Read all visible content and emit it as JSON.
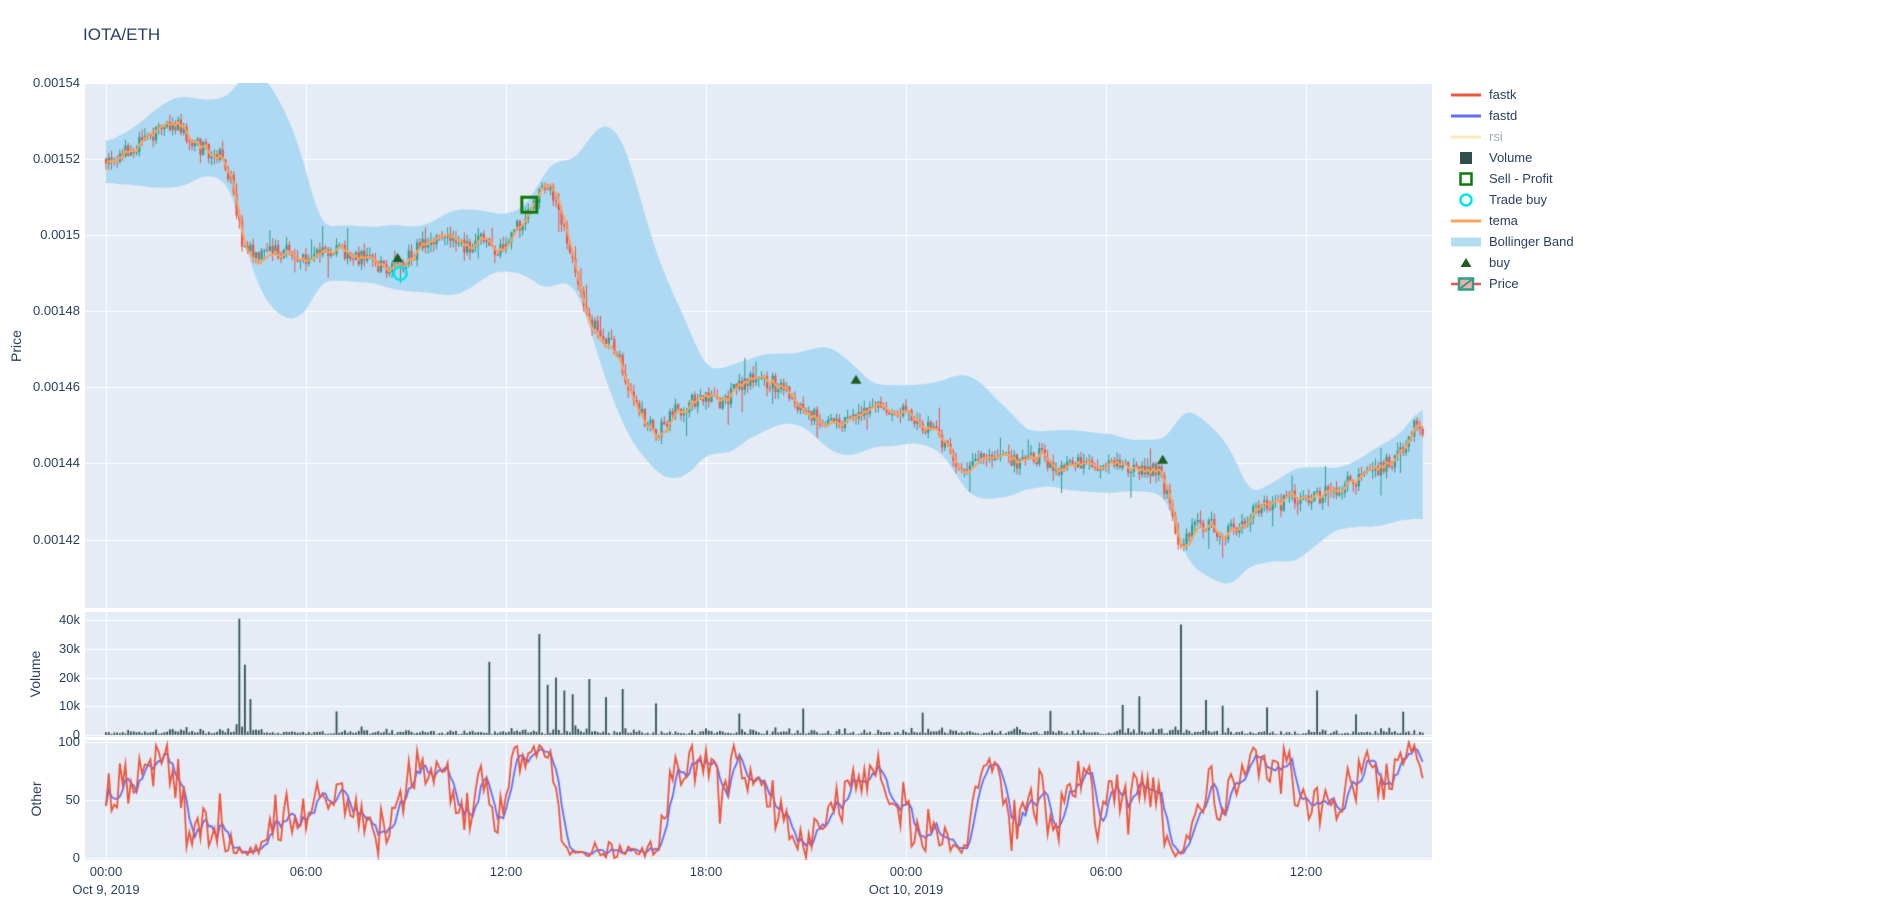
{
  "title": "IOTA/ETH",
  "legend": {
    "items": [
      {
        "id": "fastk",
        "label": "fastk",
        "symbol": "line",
        "color": "#EF553B",
        "dim": false
      },
      {
        "id": "fastd",
        "label": "fastd",
        "symbol": "line",
        "color": "#636EFA",
        "dim": false
      },
      {
        "id": "rsi",
        "label": "rsi",
        "symbol": "line",
        "color": "#FECB52",
        "dim": true
      },
      {
        "id": "volume",
        "label": "Volume",
        "symbol": "square-fill",
        "color": "#2F4F4F",
        "dim": false
      },
      {
        "id": "sell-profit",
        "label": "Sell - Profit",
        "symbol": "square-open",
        "color": "#0B7A0B",
        "dim": false
      },
      {
        "id": "trade-buy",
        "label": "Trade buy",
        "symbol": "circle-open",
        "color": "#00E5EE",
        "dim": false
      },
      {
        "id": "tema",
        "label": "tema",
        "symbol": "line",
        "color": "#FFA15A",
        "dim": false
      },
      {
        "id": "bollinger",
        "label": "Bollinger Band",
        "symbol": "band",
        "color": "#B5DDF2",
        "dim": false
      },
      {
        "id": "buy",
        "label": "buy",
        "symbol": "triangle",
        "color": "#1F5E20",
        "dim": false
      },
      {
        "id": "price",
        "label": "Price",
        "symbol": "candle",
        "color": "#2F9E8B",
        "dim": false
      }
    ]
  },
  "axes": {
    "price": {
      "title": "Price",
      "ticks": [
        "0.00154",
        "0.00152",
        "0.0015",
        "0.00148",
        "0.00146",
        "0.00144",
        "0.00142"
      ],
      "tick_values": [
        0.00154,
        0.00152,
        0.0015,
        0.00148,
        0.00146,
        0.00144,
        0.00142
      ]
    },
    "volume": {
      "title": "Volume",
      "ticks": [
        "40k",
        "30k",
        "20k",
        "10k",
        "0"
      ],
      "tick_values": [
        40000,
        30000,
        20000,
        10000,
        0
      ]
    },
    "other": {
      "title": "Other",
      "ticks": [
        "100",
        "50",
        "0"
      ],
      "tick_values": [
        100,
        50,
        0
      ]
    },
    "x": {
      "ticks": [
        {
          "label": "00:00",
          "sub": "Oct 9, 2019",
          "hour": 0
        },
        {
          "label": "06:00",
          "hour": 6
        },
        {
          "label": "12:00",
          "hour": 12
        },
        {
          "label": "18:00",
          "hour": 18
        },
        {
          "label": "00:00",
          "sub": "Oct 10, 2019",
          "hour": 24
        },
        {
          "label": "06:00",
          "hour": 30
        },
        {
          "label": "12:00",
          "hour": 36
        }
      ]
    }
  },
  "chart_data": {
    "type": "candlestick",
    "title": "IOTA/ETH",
    "x_unit": "hours since 2019-10-09 00:00",
    "x_axis_range_hours": [
      -0.63,
      39.78
    ],
    "candle_interval_hours": 0.0833333,
    "subplots": [
      {
        "name": "Price",
        "y_range": [
          0.001402,
          0.00154
        ],
        "grid": true
      },
      {
        "name": "Volume",
        "y_range": [
          0,
          43000
        ],
        "grid": true
      },
      {
        "name": "Other",
        "y_range": [
          0,
          100
        ],
        "grid": true
      }
    ],
    "series": [
      {
        "name": "Price",
        "type": "candlestick",
        "panel": "Price",
        "up_color": "#2F9E8B",
        "down_color": "#E8544E",
        "visible": true
      },
      {
        "name": "Bollinger Band",
        "type": "band",
        "panel": "Price",
        "color": "#B5DDF2",
        "window": 30,
        "stddev_mult": 2,
        "visible": true
      },
      {
        "name": "tema",
        "type": "line",
        "panel": "Price",
        "color": "#FFA15A",
        "visible": true
      },
      {
        "name": "buy",
        "type": "marker-triangle",
        "panel": "Price",
        "color": "#1F5E20",
        "visible": true
      },
      {
        "name": "Trade buy",
        "type": "marker-circle-open",
        "panel": "Price",
        "color": "#00E5EE",
        "visible": true
      },
      {
        "name": "Sell - Profit",
        "type": "marker-square-open",
        "panel": "Price",
        "color": "#0B7A0B",
        "visible": true
      },
      {
        "name": "Volume",
        "type": "bar",
        "panel": "Volume",
        "color": "#2F4F4F",
        "visible": true
      },
      {
        "name": "fastk",
        "type": "line",
        "panel": "Other",
        "color": "#EF553B",
        "stoch_window": 12,
        "visible": true
      },
      {
        "name": "fastd",
        "type": "line",
        "panel": "Other",
        "color": "#636EFA",
        "smooth_of": "fastk",
        "sma": 4,
        "visible": true
      },
      {
        "name": "rsi",
        "type": "line",
        "panel": "Other",
        "color": "#FECB52",
        "visible": false
      }
    ],
    "price_anchors": [
      [
        0,
        0.00152
      ],
      [
        0.7,
        0.001522
      ],
      [
        1.2,
        0.001525
      ],
      [
        1.7,
        0.001528
      ],
      [
        2.1,
        0.001529
      ],
      [
        2.5,
        0.001525
      ],
      [
        3.0,
        0.001522
      ],
      [
        3.5,
        0.001521
      ],
      [
        3.8,
        0.001513
      ],
      [
        4.1,
        0.001498
      ],
      [
        4.5,
        0.001494
      ],
      [
        5.2,
        0.001496
      ],
      [
        6.0,
        0.001494
      ],
      [
        7.0,
        0.001496
      ],
      [
        7.7,
        0.001494
      ],
      [
        8.3,
        0.001492
      ],
      [
        8.8,
        0.001491
      ],
      [
        9.3,
        0.001496
      ],
      [
        9.8,
        0.001499
      ],
      [
        10.3,
        0.0015
      ],
      [
        10.8,
        0.001497
      ],
      [
        11.3,
        0.001499
      ],
      [
        11.8,
        0.001496
      ],
      [
        12.2,
        0.0015
      ],
      [
        12.6,
        0.001506
      ],
      [
        13.0,
        0.001511
      ],
      [
        13.3,
        0.001513
      ],
      [
        13.6,
        0.001506
      ],
      [
        13.9,
        0.001497
      ],
      [
        14.2,
        0.001486
      ],
      [
        14.5,
        0.001477
      ],
      [
        14.9,
        0.001474
      ],
      [
        15.3,
        0.00147
      ],
      [
        15.7,
        0.001459
      ],
      [
        16.1,
        0.001452
      ],
      [
        16.5,
        0.001448
      ],
      [
        17.0,
        0.001453
      ],
      [
        17.5,
        0.001456
      ],
      [
        18.0,
        0.001458
      ],
      [
        18.5,
        0.001456
      ],
      [
        19.0,
        0.001461
      ],
      [
        19.5,
        0.001463
      ],
      [
        20.0,
        0.001461
      ],
      [
        20.6,
        0.001457
      ],
      [
        21.2,
        0.001453
      ],
      [
        21.8,
        0.00145
      ],
      [
        22.4,
        0.001452
      ],
      [
        23.0,
        0.001454
      ],
      [
        23.6,
        0.001455
      ],
      [
        24.2,
        0.001452
      ],
      [
        24.8,
        0.001449
      ],
      [
        25.3,
        0.001443
      ],
      [
        25.7,
        0.001438
      ],
      [
        26.2,
        0.001441
      ],
      [
        26.8,
        0.001443
      ],
      [
        27.4,
        0.00144
      ],
      [
        28.0,
        0.001442
      ],
      [
        28.6,
        0.001439
      ],
      [
        29.2,
        0.001441
      ],
      [
        29.8,
        0.001438
      ],
      [
        30.4,
        0.00144
      ],
      [
        31.0,
        0.001438
      ],
      [
        31.5,
        0.001439
      ],
      [
        31.9,
        0.001431
      ],
      [
        32.2,
        0.001419
      ],
      [
        32.6,
        0.001423
      ],
      [
        33.1,
        0.001424
      ],
      [
        33.6,
        0.001421
      ],
      [
        34.1,
        0.001425
      ],
      [
        34.6,
        0.001428
      ],
      [
        35.1,
        0.001429
      ],
      [
        35.6,
        0.001431
      ],
      [
        36.1,
        0.00143
      ],
      [
        36.6,
        0.001432
      ],
      [
        37.1,
        0.001434
      ],
      [
        37.6,
        0.001436
      ],
      [
        38.1,
        0.001438
      ],
      [
        38.6,
        0.001441
      ],
      [
        39.0,
        0.001446
      ],
      [
        39.3,
        0.001451
      ],
      [
        39.5,
        0.001449
      ]
    ],
    "volume_spikes": [
      [
        4.0,
        40500
      ],
      [
        4.17,
        24500
      ],
      [
        4.33,
        12500
      ],
      [
        6.9,
        8200
      ],
      [
        11.5,
        25500
      ],
      [
        13.0,
        35200
      ],
      [
        13.25,
        17500
      ],
      [
        13.5,
        20000
      ],
      [
        13.75,
        15500
      ],
      [
        14.0,
        14200
      ],
      [
        14.5,
        19500
      ],
      [
        15.0,
        13200
      ],
      [
        15.5,
        16000
      ],
      [
        16.5,
        11000
      ],
      [
        19.0,
        7500
      ],
      [
        20.9,
        9200
      ],
      [
        24.5,
        7800
      ],
      [
        28.3,
        8400
      ],
      [
        30.5,
        10500
      ],
      [
        31.0,
        13500
      ],
      [
        32.25,
        38500
      ],
      [
        33.0,
        12200
      ],
      [
        33.5,
        10200
      ],
      [
        34.8,
        9600
      ],
      [
        36.3,
        15500
      ],
      [
        37.5,
        7200
      ],
      [
        38.9,
        8100
      ]
    ],
    "markers": {
      "buy": [
        [
          8.75,
          0.001494
        ],
        [
          22.5,
          0.001462
        ],
        [
          31.7,
          0.001441
        ]
      ],
      "trade_buy": [
        [
          8.83,
          0.00149
        ]
      ],
      "sell_profit": [
        [
          12.7,
          0.001508
        ]
      ]
    },
    "colors": {
      "plot_bg": "#E5ECF6",
      "grid": "#FFFFFF",
      "text": "#2a3f5f",
      "candle_up": "#2F9E8B",
      "candle_down": "#E8544E",
      "bollinger": "#B5DDF2",
      "tema": "#FFA15A",
      "volume": "#2F4F4F",
      "fastk": "#EF553B",
      "fastd": "#636EFA",
      "buy": "#1F5E20",
      "trade_buy": "#00E5EE",
      "sell_profit": "#0B7A0B"
    },
    "legend_position": "right"
  }
}
